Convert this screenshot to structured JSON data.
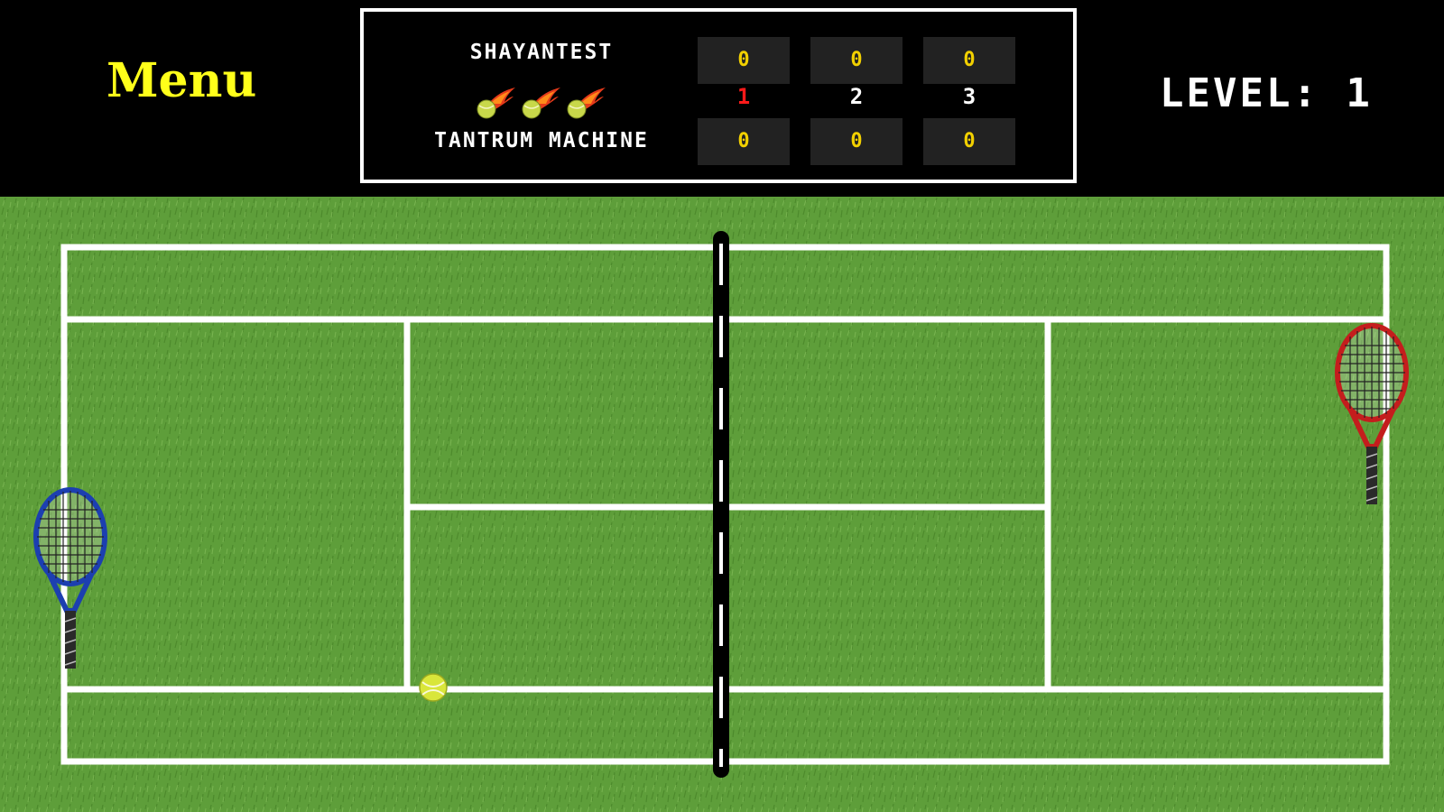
{
  "menu": {
    "label": "Menu"
  },
  "scoreboard": {
    "player1": {
      "name": "SHAYANTEST",
      "games": [
        "0",
        "0",
        "0"
      ]
    },
    "player2": {
      "name": "TANTRUM MACHINE",
      "games": [
        "0",
        "0",
        "0"
      ]
    },
    "sets": [
      {
        "label": "1",
        "active": true
      },
      {
        "label": "2",
        "active": false
      },
      {
        "label": "3",
        "active": false
      }
    ],
    "serve_balls_remaining": 3
  },
  "level": {
    "text": "LEVEL: 1"
  },
  "colors": {
    "menu": "#ffff1a",
    "score_digits": "#f2d000",
    "active_set": "#ff1a1a",
    "grass": "#5e9e3a",
    "lines": "#ffffff",
    "player_racket": "#1c3fb0",
    "opponent_racket": "#c41d1d"
  },
  "icons": {
    "serve_ball": "flaming-tennis-ball-icon",
    "ball": "tennis-ball-icon",
    "player_racket": "blue-racket-icon",
    "opponent_racket": "red-racket-icon"
  }
}
